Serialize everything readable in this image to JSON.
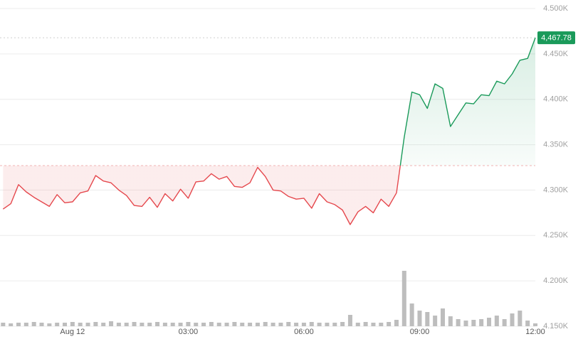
{
  "chart_data": {
    "type": "line",
    "x": [
      -1.8,
      -1.6,
      -1.4,
      -1.2,
      -1.0,
      -0.8,
      -0.6,
      -0.4,
      -0.2,
      0,
      0.2,
      0.4,
      0.6,
      0.8,
      1.0,
      1.2,
      1.4,
      1.6,
      1.8,
      2.0,
      2.2,
      2.4,
      2.6,
      2.8,
      3.0,
      3.2,
      3.4,
      3.6,
      3.8,
      4.0,
      4.2,
      4.4,
      4.6,
      4.8,
      5.0,
      5.2,
      5.4,
      5.6,
      5.8,
      6.0,
      6.2,
      6.4,
      6.6,
      6.8,
      7.0,
      7.2,
      7.4,
      7.6,
      7.8,
      8.0,
      8.2,
      8.4,
      8.6,
      8.8,
      9.0,
      9.2,
      9.4,
      9.6,
      9.8,
      10.0,
      10.2,
      10.4,
      10.6,
      10.8,
      11.0,
      11.2,
      11.4,
      11.6,
      11.8,
      12.0
    ],
    "series": [
      {
        "values": [
          4279,
          4285,
          4306,
          4298,
          4292,
          4287,
          4282,
          4295,
          4286,
          4287,
          4297,
          4299,
          4316,
          4310,
          4308,
          4300,
          4294,
          4283,
          4282,
          4292,
          4281,
          4296,
          4288,
          4301,
          4291,
          4309,
          4310,
          4318,
          4312,
          4315,
          4304,
          4303,
          4308,
          4325,
          4315,
          4300,
          4299,
          4293,
          4290,
          4291,
          4280,
          4296,
          4287,
          4284,
          4278,
          4262,
          4276,
          4282,
          4275,
          4290,
          4282,
          4297,
          4358,
          4408,
          4405,
          4390,
          4417,
          4412,
          4370,
          4383,
          4396,
          4395,
          4405,
          4404,
          4420,
          4417,
          4428,
          4443,
          4445,
          4467.78
        ],
        "up_color": "#1a9a5a",
        "down_color": "#e5484d"
      }
    ],
    "baseline": 4327,
    "last_price": {
      "value": 4467.78,
      "label": "4,467.78"
    },
    "volume": {
      "color": "#bdbdbd",
      "ylim": [
        0,
        100
      ],
      "values": [
        5,
        4,
        5,
        5,
        6,
        5,
        4,
        5,
        5,
        6,
        5,
        5,
        6,
        5,
        7,
        5,
        5,
        6,
        5,
        5,
        6,
        5,
        5,
        5,
        6,
        5,
        5,
        6,
        5,
        5,
        6,
        5,
        5,
        5,
        6,
        5,
        5,
        6,
        5,
        5,
        6,
        5,
        5,
        5,
        6,
        16,
        5,
        6,
        5,
        5,
        6,
        9,
        78,
        32,
        22,
        20,
        15,
        25,
        14,
        10,
        8,
        9,
        10,
        12,
        15,
        10,
        18,
        22,
        8,
        4
      ]
    },
    "xlim": [
      -1.88,
      12.0
    ],
    "ylim": [
      4150,
      4500
    ],
    "xticks": [
      {
        "value": 0,
        "label": "Aug 12"
      },
      {
        "value": 3,
        "label": "03:00"
      },
      {
        "value": 6,
        "label": "06:00"
      },
      {
        "value": 9,
        "label": "09:00"
      },
      {
        "value": 12,
        "label": "12:00"
      }
    ],
    "yticks": [
      {
        "value": 4150,
        "label": "4.150K"
      },
      {
        "value": 4200,
        "label": "4.200K"
      },
      {
        "value": 4250,
        "label": "4.250K"
      },
      {
        "value": 4300,
        "label": "4.300K"
      },
      {
        "value": 4350,
        "label": "4.350K"
      },
      {
        "value": 4400,
        "label": "4.400K"
      },
      {
        "value": 4450,
        "label": "4.450K"
      },
      {
        "value": 4500,
        "label": "4.500K"
      }
    ],
    "grid": true
  }
}
